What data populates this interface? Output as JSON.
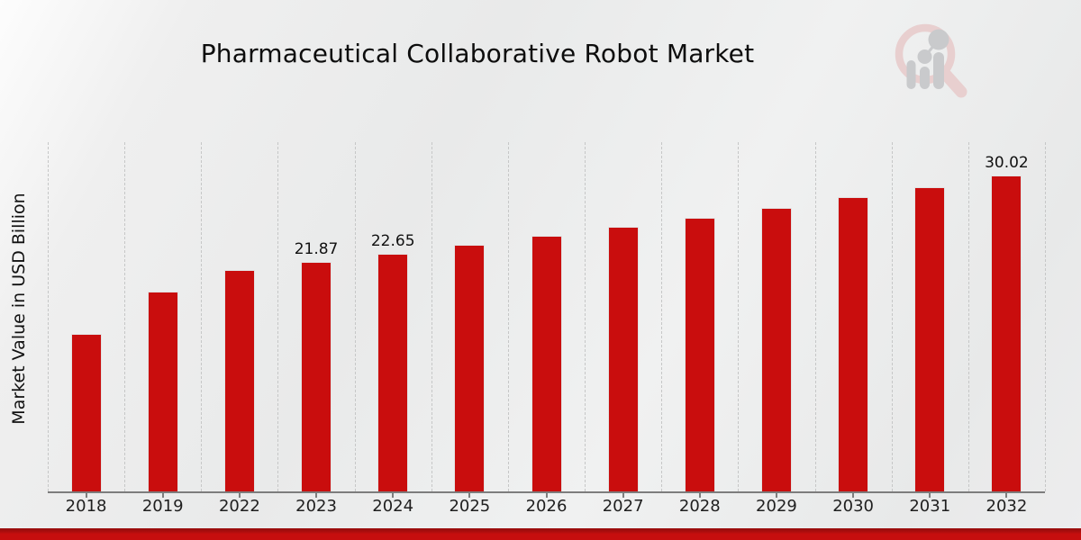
{
  "page": {
    "title": "Pharmaceutical Collaborative Robot Market",
    "ylabel": "Market Value in USD Billion",
    "watermark_icon": "magnifier-barchart-logo"
  },
  "chart_data": {
    "type": "bar",
    "title": "Pharmaceutical Collaborative Robot Market",
    "xlabel": "",
    "ylabel": "Market Value in USD Billion",
    "categories": [
      "2018",
      "2019",
      "2022",
      "2023",
      "2024",
      "2025",
      "2026",
      "2027",
      "2028",
      "2029",
      "2030",
      "2031",
      "2032"
    ],
    "values": [
      15.02,
      19.05,
      21.11,
      21.87,
      22.65,
      23.46,
      24.3,
      25.17,
      26.07,
      27.0,
      27.97,
      28.97,
      30.02
    ],
    "data_labels": [
      null,
      null,
      null,
      "21.87",
      "22.65",
      null,
      null,
      null,
      null,
      null,
      null,
      null,
      "30.02"
    ],
    "ylim": [
      0,
      33.23
    ],
    "bar_color": "#c90d0d",
    "grid": "vertical-dashed",
    "legend_position": "none"
  },
  "colors": {
    "bar": "#c90d0d",
    "banner": "#c60e0e",
    "axis": "#7d7d7d",
    "gridline": "#c6c7c7",
    "watermark_pink": "#e8cfcf",
    "watermark_gray": "#c9cacc"
  }
}
